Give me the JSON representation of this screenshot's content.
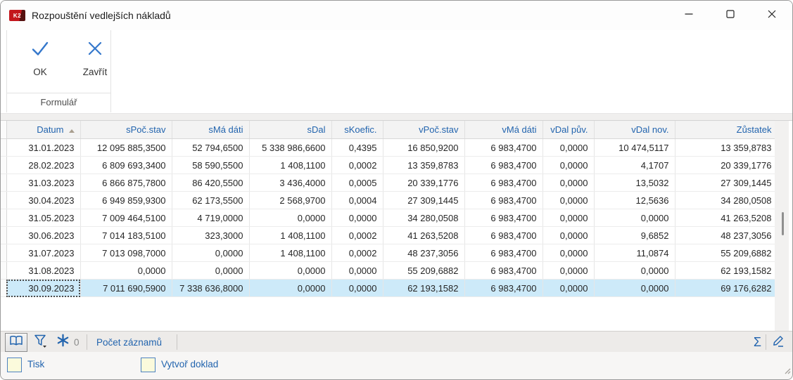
{
  "window": {
    "title": "Rozpouštění vedlejších nákladů",
    "app_icon_text": "K2"
  },
  "toolbar": {
    "ok": {
      "label": "OK"
    },
    "close": {
      "label": "Zavřít"
    },
    "group_label": "Formulář"
  },
  "table": {
    "columns": [
      {
        "key": "datum",
        "label": "Datum",
        "sort": "asc"
      },
      {
        "key": "spoc-stav",
        "label": "sPoč.stav"
      },
      {
        "key": "sma-dati",
        "label": "sMá dáti"
      },
      {
        "key": "sdal",
        "label": "sDal"
      },
      {
        "key": "skoefic",
        "label": "sKoefic."
      },
      {
        "key": "vpoc-stav",
        "label": "vPoč.stav"
      },
      {
        "key": "vma-dati",
        "label": "vMá dáti"
      },
      {
        "key": "vdal-puv",
        "label": "vDal pův."
      },
      {
        "key": "vdal-nov",
        "label": "vDal nov."
      },
      {
        "key": "zustatek",
        "label": "Zůstatek"
      }
    ],
    "selected_row_index": 8,
    "rows": [
      [
        "31.01.2023",
        "12 095 885,3500",
        "52 794,6500",
        "5 338 986,6600",
        "0,4395",
        "16 850,9200",
        "6 983,4700",
        "0,0000",
        "10 474,5117",
        "13 359,8783"
      ],
      [
        "28.02.2023",
        "6 809 693,3400",
        "58 590,5500",
        "1 408,1100",
        "0,0002",
        "13 359,8783",
        "6 983,4700",
        "0,0000",
        "4,1707",
        "20 339,1776"
      ],
      [
        "31.03.2023",
        "6 866 875,7800",
        "86 420,5500",
        "3 436,4000",
        "0,0005",
        "20 339,1776",
        "6 983,4700",
        "0,0000",
        "13,5032",
        "27 309,1445"
      ],
      [
        "30.04.2023",
        "6 949 859,9300",
        "62 173,5500",
        "2 568,9700",
        "0,0004",
        "27 309,1445",
        "6 983,4700",
        "0,0000",
        "12,5636",
        "34 280,0508"
      ],
      [
        "31.05.2023",
        "7 009 464,5100",
        "4 719,0000",
        "0,0000",
        "0,0000",
        "34 280,0508",
        "6 983,4700",
        "0,0000",
        "0,0000",
        "41 263,5208"
      ],
      [
        "30.06.2023",
        "7 014 183,5100",
        "323,3000",
        "1 408,1100",
        "0,0002",
        "41 263,5208",
        "6 983,4700",
        "0,0000",
        "9,6852",
        "48 237,3056"
      ],
      [
        "31.07.2023",
        "7 013 098,7000",
        "0,0000",
        "1 408,1100",
        "0,0002",
        "48 237,3056",
        "6 983,4700",
        "0,0000",
        "11,0874",
        "55 209,6882"
      ],
      [
        "31.08.2023",
        "0,0000",
        "0,0000",
        "0,0000",
        "0,0000",
        "55 209,6882",
        "6 983,4700",
        "0,0000",
        "0,0000",
        "62 193,1582"
      ],
      [
        "30.09.2023",
        "7 011 690,5900",
        "7 338 636,8000",
        "0,0000",
        "0,0000",
        "62 193,1582",
        "6 983,4700",
        "0,0000",
        "0,0000",
        "69 176,6282"
      ]
    ]
  },
  "status_bar": {
    "filter_badge_count": "0",
    "records_label": "Počet záznamů",
    "sum_symbol": "Σ"
  },
  "footer": {
    "print": {
      "label": "Tisk",
      "checked": false
    },
    "create_document": {
      "label": "Vytvoř doklad",
      "checked": false
    }
  },
  "colors": {
    "accent_blue": "#2264ae",
    "selection_blue": "#cdeaf9",
    "checkbox_fill": "#fbfadc",
    "k2_red": "#c3161c"
  }
}
